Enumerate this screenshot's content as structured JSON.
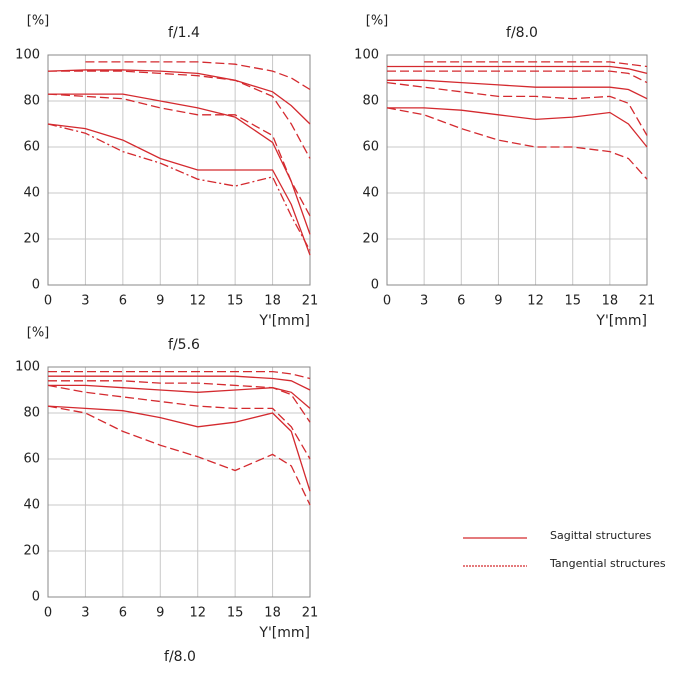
{
  "chart_data": [
    {
      "type": "line",
      "title": "f/1.4",
      "ylabel": "[%]",
      "xlabel": "Y'[mm]",
      "x": [
        0,
        3,
        6,
        9,
        12,
        15,
        18,
        19.5,
        21
      ],
      "xlim": [
        0,
        21
      ],
      "xticks": [
        0,
        3,
        6,
        9,
        12,
        15,
        18,
        21
      ],
      "ylim": [
        0,
        100
      ],
      "yticks": [
        0,
        20,
        40,
        60,
        80,
        100
      ],
      "grid": true,
      "series": [
        {
          "style": "dashed",
          "color": "#d42a2f",
          "values": [
            null,
            97,
            97,
            97,
            97,
            96,
            93,
            90,
            85
          ]
        },
        {
          "style": "solid",
          "color": "#d42a2f",
          "values": [
            93,
            93.5,
            93.5,
            93,
            92,
            89,
            84,
            78,
            70
          ]
        },
        {
          "style": "dashed",
          "color": "#d42a2f",
          "values": [
            93,
            93,
            93,
            92,
            91,
            89,
            82,
            70,
            55
          ]
        },
        {
          "style": "solid",
          "color": "#d42a2f",
          "values": [
            83,
            83,
            83,
            80,
            77,
            73,
            62,
            45,
            22
          ]
        },
        {
          "style": "dashed",
          "color": "#d42a2f",
          "values": [
            83,
            82,
            81,
            77,
            74,
            74,
            65,
            45,
            30
          ]
        },
        {
          "style": "solid",
          "color": "#d42a2f",
          "values": [
            70,
            68,
            63,
            55,
            50,
            50,
            50,
            35,
            13
          ]
        },
        {
          "style": "dashdot",
          "color": "#d42a2f",
          "values": [
            70,
            66,
            58,
            53,
            46,
            43,
            47,
            30,
            15
          ]
        }
      ]
    },
    {
      "type": "line",
      "title": "f/8.0",
      "ylabel": "[%]",
      "xlabel": "Y'[mm]",
      "x": [
        0,
        3,
        6,
        9,
        12,
        15,
        18,
        19.5,
        21
      ],
      "xlim": [
        0,
        21
      ],
      "xticks": [
        0,
        3,
        6,
        9,
        12,
        15,
        18,
        21
      ],
      "ylim": [
        0,
        100
      ],
      "yticks": [
        0,
        20,
        40,
        60,
        80,
        100
      ],
      "grid": true,
      "series": [
        {
          "style": "dashed",
          "color": "#d42a2f",
          "values": [
            null,
            97,
            97,
            97,
            97,
            97,
            97,
            96,
            95
          ]
        },
        {
          "style": "solid",
          "color": "#d42a2f",
          "values": [
            95,
            95,
            95,
            95,
            95,
            95,
            95,
            94,
            92
          ]
        },
        {
          "style": "dashed",
          "color": "#d42a2f",
          "values": [
            93,
            93,
            93,
            93,
            93,
            93,
            93,
            92,
            88
          ]
        },
        {
          "style": "solid",
          "color": "#d42a2f",
          "values": [
            89,
            89,
            88,
            87,
            86,
            86,
            86,
            85,
            81
          ]
        },
        {
          "style": "dashed",
          "color": "#d42a2f",
          "values": [
            88,
            86,
            84,
            82,
            82,
            81,
            82,
            79,
            65
          ]
        },
        {
          "style": "solid",
          "color": "#d42a2f",
          "values": [
            77,
            77,
            76,
            74,
            72,
            73,
            75,
            70,
            60
          ]
        },
        {
          "style": "dashed",
          "color": "#d42a2f",
          "values": [
            77,
            74,
            68,
            63,
            60,
            60,
            58,
            55,
            46
          ]
        }
      ]
    },
    {
      "type": "line",
      "title": "f/5.6",
      "ylabel": "[%]",
      "xlabel": "Y'[mm]",
      "x": [
        0,
        3,
        6,
        9,
        12,
        15,
        18,
        19.5,
        21
      ],
      "xlim": [
        0,
        21
      ],
      "xticks": [
        0,
        3,
        6,
        9,
        12,
        15,
        18,
        21
      ],
      "ylim": [
        0,
        100
      ],
      "yticks": [
        0,
        20,
        40,
        60,
        80,
        100
      ],
      "grid": true,
      "series": [
        {
          "style": "dashed",
          "color": "#d42a2f",
          "values": [
            98,
            98,
            98,
            98,
            98,
            98,
            98,
            97,
            95
          ]
        },
        {
          "style": "solid",
          "color": "#d42a2f",
          "values": [
            96,
            96,
            96,
            96,
            96,
            96,
            95,
            94,
            90
          ]
        },
        {
          "style": "dashed",
          "color": "#d42a2f",
          "values": [
            94,
            94,
            94,
            93,
            93,
            92,
            91,
            88,
            76
          ]
        },
        {
          "style": "solid",
          "color": "#d42a2f",
          "values": [
            92,
            92,
            91,
            90,
            89,
            90,
            91,
            89,
            82
          ]
        },
        {
          "style": "dashed",
          "color": "#d42a2f",
          "values": [
            92,
            89,
            87,
            85,
            83,
            82,
            82,
            74,
            60
          ]
        },
        {
          "style": "solid",
          "color": "#d42a2f",
          "values": [
            83,
            82,
            81,
            78,
            74,
            76,
            80,
            72,
            46
          ]
        },
        {
          "style": "dashed",
          "color": "#d42a2f",
          "values": [
            83,
            80,
            72,
            66,
            61,
            55,
            62,
            57,
            40
          ]
        }
      ]
    }
  ],
  "caption": "f/8.0",
  "legend": [
    {
      "label": "Sagittal structures",
      "style": "solid",
      "color": "#d42a2f"
    },
    {
      "label": "Tangential structures",
      "style": "dashed",
      "color": "#d42a2f"
    }
  ]
}
